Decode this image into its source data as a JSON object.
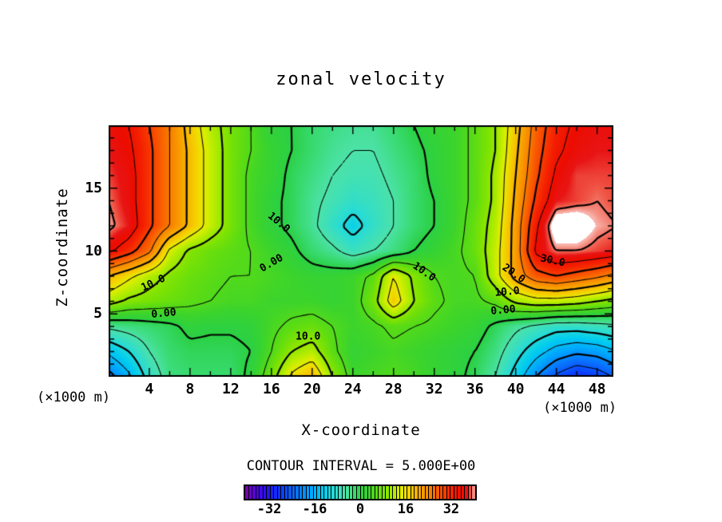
{
  "title": "zonal velocity",
  "axes": {
    "xlabel": "X-coordinate",
    "ylabel": "Z-coordinate",
    "unit_left": "(×1000 m)",
    "unit_right": "(×1000 m)"
  },
  "contour_note": "CONTOUR INTERVAL = 5.000E+00",
  "colors": {
    "line": "#000000",
    "background": "#ffffff"
  },
  "chart_data": {
    "type": "filled_contour",
    "title": "zonal velocity",
    "xlabel": "X-coordinate",
    "ylabel": "Z-coordinate",
    "x_units": "(×1000 m)",
    "contour_interval": 5.0,
    "x_range": [
      0,
      49.6
    ],
    "z_range": [
      0,
      20
    ],
    "x_ticks": [
      4,
      8,
      12,
      16,
      20,
      24,
      28,
      32,
      36,
      40,
      44,
      48
    ],
    "y_ticks": [
      5,
      10,
      15
    ],
    "grid_x": [
      0,
      2,
      4,
      6,
      8,
      10,
      12,
      14,
      16,
      18,
      20,
      22,
      24,
      26,
      28,
      30,
      32,
      34,
      36,
      38,
      40,
      42,
      44,
      46,
      48,
      50
    ],
    "grid_z": [
      20,
      18,
      16,
      14,
      12,
      10,
      8,
      6,
      4,
      2,
      0
    ],
    "values": [
      [
        37,
        35,
        30,
        25,
        18,
        12,
        8,
        5,
        1,
        0,
        -2,
        -3,
        -4,
        -4,
        -2,
        0,
        2,
        3,
        6,
        10,
        18,
        27,
        33,
        36,
        37,
        37
      ],
      [
        38,
        36,
        31,
        25,
        19,
        13,
        8,
        5,
        2,
        0,
        -2,
        -4,
        -5,
        -5,
        -3,
        -1,
        1,
        3,
        6,
        10,
        19,
        28,
        34,
        37,
        38,
        38
      ],
      [
        39,
        37,
        31,
        25,
        19,
        13,
        8,
        4,
        2,
        -1,
        -3,
        -5,
        -6,
        -6,
        -4,
        -2,
        1,
        3,
        6,
        11,
        20,
        29,
        36,
        39,
        39,
        39
      ],
      [
        40,
        37,
        31,
        25,
        19,
        13,
        8,
        4,
        1,
        -1,
        -4,
        -6,
        -8,
        -7,
        -5,
        -2,
        0,
        3,
        6,
        11,
        21,
        31,
        38,
        39,
        40,
        39
      ],
      [
        41,
        38,
        31,
        25,
        19,
        13,
        8,
        4,
        1,
        -1,
        -4,
        -8,
        -12,
        -8,
        -5,
        -2,
        0,
        3,
        7,
        12,
        22,
        34,
        44,
        44,
        41,
        40
      ],
      [
        36,
        32,
        26,
        14,
        9,
        7,
        6,
        5,
        3,
        1,
        -2,
        -4,
        -7,
        -5,
        -3,
        0,
        2,
        4,
        7,
        13,
        22,
        36,
        40,
        40,
        39,
        38
      ],
      [
        20,
        16,
        12,
        9,
        7,
        6,
        5,
        5,
        4,
        3,
        2,
        2,
        3,
        6,
        15,
        9,
        5,
        4,
        5,
        13,
        22,
        28,
        30,
        28,
        26,
        23
      ],
      [
        12,
        9,
        8,
        7,
        6,
        5,
        4,
        4,
        3,
        3,
        3,
        2,
        3,
        8,
        18,
        10,
        6,
        4,
        4,
        6,
        11,
        13,
        13,
        12,
        10,
        8
      ],
      [
        -4,
        -3,
        -2,
        -1,
        1,
        0.5,
        0.5,
        1,
        4,
        6,
        7,
        5,
        3,
        4,
        6,
        5,
        4,
        3,
        2,
        -1,
        -4,
        -6,
        -8,
        -8,
        -7,
        -6
      ],
      [
        -14,
        -10,
        -5,
        -2,
        -1,
        -1,
        -1,
        0,
        5,
        10,
        12,
        6,
        2,
        3,
        4,
        3,
        2,
        1,
        0,
        -3,
        -8,
        -13,
        -17,
        -19,
        -18,
        -15
      ],
      [
        -22,
        -16,
        -8,
        -3,
        -2,
        -2,
        -2,
        1,
        8,
        16,
        20,
        10,
        3,
        4,
        5,
        4,
        2,
        1,
        -1,
        -5,
        -12,
        -20,
        -26,
        -30,
        -28,
        -24
      ]
    ],
    "contour_labels": [
      {
        "text": "10.0",
        "x": 16.7,
        "z": 12.25,
        "rot": 40
      },
      {
        "text": "0.00",
        "x": 16.0,
        "z": 9.0,
        "rot": -30
      },
      {
        "text": "10.0",
        "x": 4.4,
        "z": 7.45,
        "rot": -25
      },
      {
        "text": "0.00",
        "x": 5.4,
        "z": 5.0,
        "rot": -5
      },
      {
        "text": "10.0",
        "x": 19.6,
        "z": 3.2,
        "rot": 0
      },
      {
        "text": "10.0",
        "x": 31.0,
        "z": 8.3,
        "rot": 35
      },
      {
        "text": "20.0",
        "x": 39.8,
        "z": 8.2,
        "rot": 35
      },
      {
        "text": "30.0",
        "x": 43.6,
        "z": 9.2,
        "rot": 12
      },
      {
        "text": "10.0",
        "x": 39.2,
        "z": 6.7,
        "rot": -5
      },
      {
        "text": "0.00",
        "x": 38.8,
        "z": 5.3,
        "rot": -5
      }
    ],
    "colormap": [
      [
        -41,
        "#7d00a8"
      ],
      [
        -37,
        "#5002e0"
      ],
      [
        -33,
        "#2414f0"
      ],
      [
        -28,
        "#0a3cff"
      ],
      [
        -23,
        "#0a6eff"
      ],
      [
        -18,
        "#00a2ff"
      ],
      [
        -13,
        "#00ccf0"
      ],
      [
        -9,
        "#2adcd2"
      ],
      [
        -5,
        "#4ce2a8"
      ],
      [
        -2,
        "#38da6e"
      ],
      [
        0,
        "#2bd044"
      ],
      [
        3,
        "#3cd42c"
      ],
      [
        6,
        "#5cdc14"
      ],
      [
        9,
        "#84e400"
      ],
      [
        12,
        "#b4ec00"
      ],
      [
        14,
        "#d8ee00"
      ],
      [
        16,
        "#eee000"
      ],
      [
        18,
        "#f6c800"
      ],
      [
        21,
        "#f8a800"
      ],
      [
        24,
        "#f88800"
      ],
      [
        27,
        "#f86400"
      ],
      [
        30,
        "#f84000"
      ],
      [
        33,
        "#f42000"
      ],
      [
        36,
        "#ec0c00"
      ],
      [
        38,
        "#e81414"
      ],
      [
        39.5,
        "#f05848"
      ],
      [
        40.5,
        "#f49084"
      ],
      [
        41,
        "#f8b4ac"
      ]
    ],
    "white_above": 41.2,
    "colorbar": {
      "domain": [
        -41,
        41
      ],
      "cells": 64,
      "ticks": [
        -32,
        -16,
        0,
        16,
        32
      ]
    }
  }
}
